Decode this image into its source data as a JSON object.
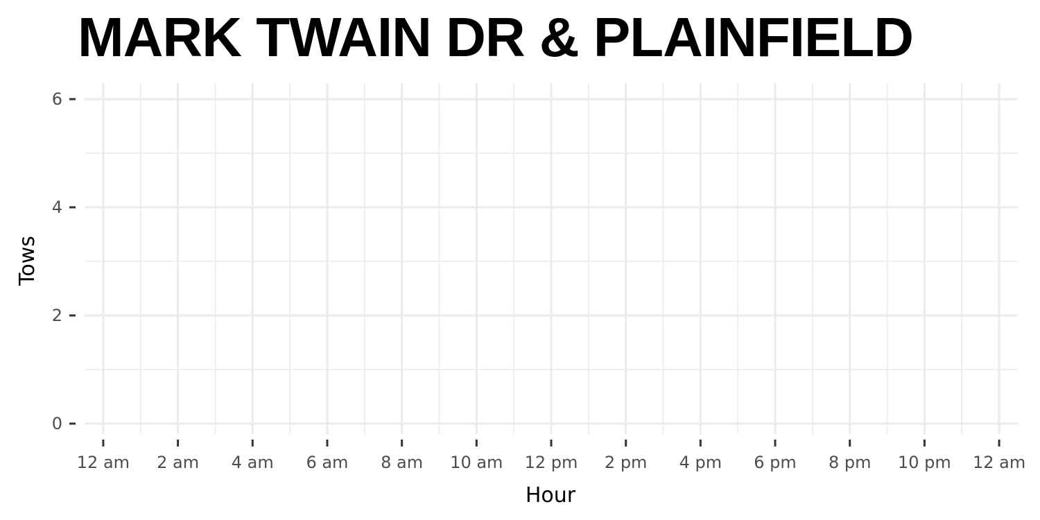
{
  "chart_data": {
    "type": "bar",
    "title": "MARK TWAIN DR & PLAINFIELD",
    "xlabel": "Hour",
    "ylabel": "Tows",
    "x_tick_labels": [
      "12 am",
      "2 am",
      "4 am",
      "6 am",
      "8 am",
      "10 am",
      "12 pm",
      "2 pm",
      "4 pm",
      "6 pm",
      "8 pm",
      "10 pm",
      "12 am"
    ],
    "y_ticks": [
      0,
      2,
      4,
      6
    ],
    "ylim": [
      0,
      6.3
    ],
    "x_range_hours": [
      -0.5,
      24.5
    ],
    "series": [],
    "grid": true,
    "colors": {
      "grid": "#ebebeb",
      "tick": "#333333",
      "tick_label": "#4d4d4d",
      "text": "#000000"
    }
  }
}
